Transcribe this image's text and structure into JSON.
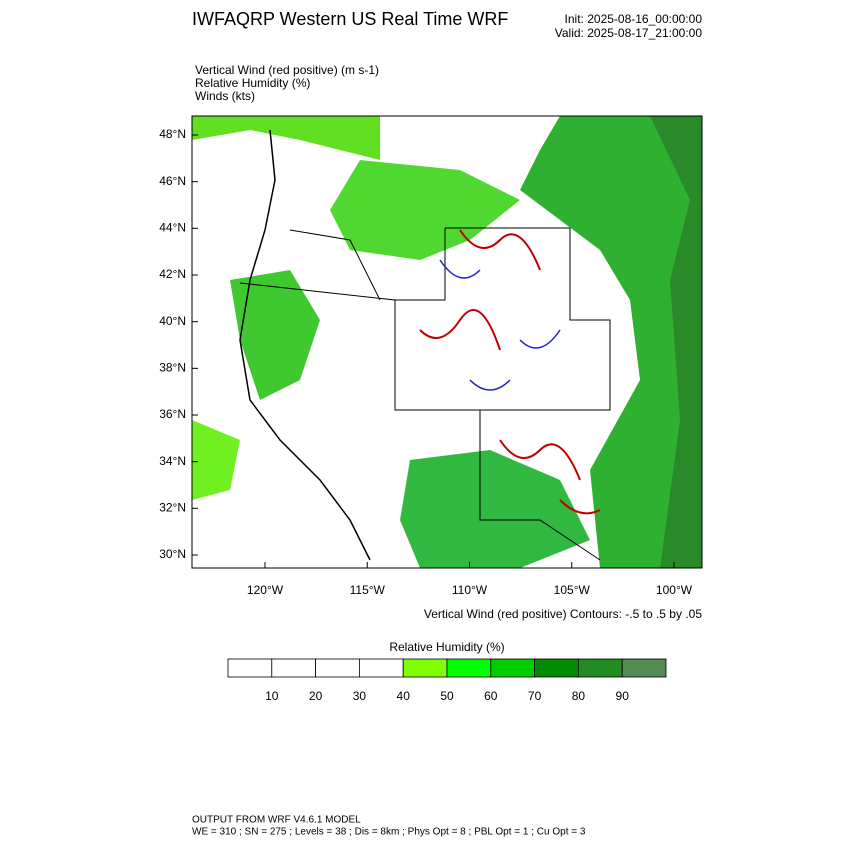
{
  "header": {
    "title": "IWFAQRP Western US Real Time WRF",
    "init": "Init: 2025-08-16_00:00:00",
    "valid": "Valid: 2025-08-17_21:00:00"
  },
  "fields": [
    "Vertical Wind (red positive)   (m s-1)",
    "Relative Humidity   (%)",
    "Winds   (kts)"
  ],
  "map": {
    "lat_labels": [
      "48°N",
      "46°N",
      "44°N",
      "42°N",
      "40°N",
      "38°N",
      "36°N",
      "34°N",
      "32°N",
      "30°N"
    ],
    "lon_labels": [
      "120°W",
      "115°W",
      "110°W",
      "105°W",
      "100°W"
    ],
    "contour_note": "Vertical Wind (red positive) Contours: -.5 to .5 by .05"
  },
  "colorbar": {
    "title": "Relative Humidity  (%)",
    "colors": [
      "#ffffff",
      "#ffffff",
      "#ffffff",
      "#ffffff",
      "#80ff00",
      "#00ff00",
      "#00cd00",
      "#008b00",
      "#228b22",
      "#548b54"
    ],
    "labels": [
      "10",
      "20",
      "30",
      "40",
      "50",
      "60",
      "70",
      "80",
      "90"
    ]
  },
  "footer": {
    "line1": "OUTPUT FROM WRF V4.6.1 MODEL",
    "line2": "WE = 310 ; SN = 275 ; Levels = 38 ; Dis = 8km ; Phys Opt = 8 ; PBL Opt = 1 ; Cu Opt = 3"
  }
}
